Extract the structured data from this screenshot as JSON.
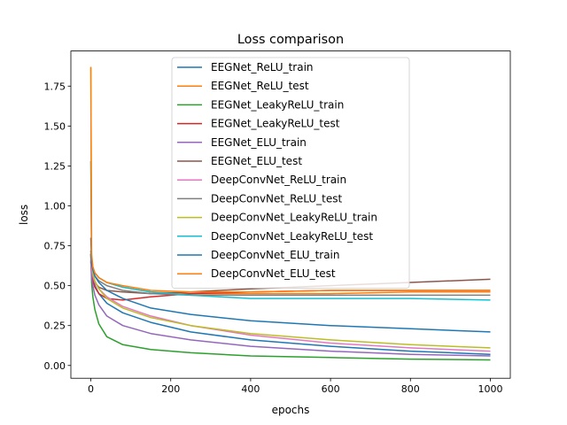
{
  "chart_data": {
    "type": "line",
    "title": "Loss comparison",
    "xlabel": "epochs",
    "ylabel": "loss",
    "xlim": [
      -50,
      1050
    ],
    "ylim": [
      -0.08,
      1.97
    ],
    "xticks": [
      0,
      200,
      400,
      600,
      800,
      1000
    ],
    "xtick_labels": [
      "0",
      "200",
      "400",
      "600",
      "800",
      "1000"
    ],
    "yticks": [
      0.0,
      0.25,
      0.5,
      0.75,
      1.0,
      1.25,
      1.5,
      1.75
    ],
    "ytick_labels": [
      "0.00",
      "0.25",
      "0.50",
      "0.75",
      "1.00",
      "1.25",
      "1.50",
      "1.75"
    ],
    "grid": false,
    "legend_position": "upper center",
    "series": [
      {
        "name": "EEGNet_ReLU_train",
        "color": "#1f77b4",
        "x": [
          0,
          2,
          5,
          10,
          20,
          40,
          80,
          150,
          250,
          400,
          600,
          800,
          1000
        ],
        "values": [
          1.28,
          0.62,
          0.55,
          0.5,
          0.45,
          0.39,
          0.33,
          0.27,
          0.21,
          0.16,
          0.12,
          0.09,
          0.07
        ]
      },
      {
        "name": "EEGNet_ReLU_test",
        "color": "#ff7f0e",
        "x": [
          0,
          2,
          5,
          10,
          20,
          40,
          80,
          150,
          250,
          400,
          600,
          800,
          1000
        ],
        "values": [
          0.7,
          0.64,
          0.6,
          0.58,
          0.55,
          0.52,
          0.49,
          0.46,
          0.45,
          0.45,
          0.45,
          0.46,
          0.46
        ]
      },
      {
        "name": "EEGNet_LeakyReLU_train",
        "color": "#2ca02c",
        "x": [
          0,
          2,
          5,
          10,
          20,
          40,
          80,
          150,
          250,
          400,
          600,
          800,
          1000
        ],
        "values": [
          0.7,
          0.52,
          0.43,
          0.35,
          0.26,
          0.18,
          0.13,
          0.1,
          0.08,
          0.06,
          0.05,
          0.04,
          0.035
        ]
      },
      {
        "name": "EEGNet_LeakyReLU_test",
        "color": "#d62728",
        "x": [
          0,
          2,
          5,
          10,
          20,
          40,
          80,
          150,
          250,
          400,
          600,
          800,
          1000
        ],
        "values": [
          0.65,
          0.58,
          0.53,
          0.49,
          0.45,
          0.42,
          0.41,
          0.43,
          0.45,
          0.46,
          0.47,
          0.47,
          0.47
        ]
      },
      {
        "name": "EEGNet_ELU_train",
        "color": "#9467bd",
        "x": [
          0,
          2,
          5,
          10,
          20,
          40,
          80,
          150,
          250,
          400,
          600,
          800,
          1000
        ],
        "values": [
          0.7,
          0.55,
          0.5,
          0.44,
          0.38,
          0.31,
          0.25,
          0.2,
          0.16,
          0.12,
          0.09,
          0.07,
          0.06
        ]
      },
      {
        "name": "EEGNet_ELU_test",
        "color": "#8c564b",
        "x": [
          0,
          2,
          5,
          10,
          20,
          40,
          80,
          150,
          250,
          400,
          600,
          800,
          1000
        ],
        "values": [
          0.66,
          0.6,
          0.56,
          0.52,
          0.49,
          0.47,
          0.46,
          0.45,
          0.46,
          0.48,
          0.5,
          0.52,
          0.54
        ]
      },
      {
        "name": "DeepConvNet_ReLU_train",
        "color": "#e377c2",
        "x": [
          0,
          2,
          5,
          10,
          20,
          40,
          80,
          150,
          250,
          400,
          600,
          800,
          1000
        ],
        "values": [
          0.72,
          0.6,
          0.56,
          0.52,
          0.48,
          0.43,
          0.37,
          0.31,
          0.25,
          0.19,
          0.14,
          0.11,
          0.09
        ]
      },
      {
        "name": "DeepConvNet_ReLU_test",
        "color": "#7f7f7f",
        "x": [
          0,
          2,
          5,
          10,
          20,
          40,
          80,
          150,
          250,
          400,
          600,
          800,
          1000
        ],
        "values": [
          0.7,
          0.64,
          0.6,
          0.56,
          0.53,
          0.5,
          0.47,
          0.45,
          0.44,
          0.44,
          0.44,
          0.44,
          0.44
        ]
      },
      {
        "name": "DeepConvNet_LeakyReLU_train",
        "color": "#bcbd22",
        "x": [
          0,
          2,
          5,
          10,
          20,
          40,
          80,
          150,
          250,
          400,
          600,
          800,
          1000
        ],
        "values": [
          1.87,
          0.68,
          0.58,
          0.53,
          0.48,
          0.42,
          0.36,
          0.3,
          0.25,
          0.2,
          0.16,
          0.13,
          0.11
        ]
      },
      {
        "name": "DeepConvNet_LeakyReLU_test",
        "color": "#17becf",
        "x": [
          0,
          2,
          5,
          10,
          20,
          40,
          80,
          150,
          250,
          400,
          600,
          800,
          1000
        ],
        "values": [
          0.72,
          0.66,
          0.61,
          0.58,
          0.55,
          0.52,
          0.49,
          0.46,
          0.44,
          0.42,
          0.42,
          0.42,
          0.41
        ]
      },
      {
        "name": "DeepConvNet_ELU_train",
        "color": "#1f77b4",
        "x": [
          0,
          2,
          5,
          10,
          20,
          40,
          80,
          150,
          250,
          400,
          600,
          800,
          1000
        ],
        "values": [
          0.8,
          0.64,
          0.6,
          0.56,
          0.52,
          0.47,
          0.42,
          0.36,
          0.32,
          0.28,
          0.25,
          0.23,
          0.21
        ]
      },
      {
        "name": "DeepConvNet_ELU_test",
        "color": "#ff7f0e",
        "x": [
          0,
          2,
          5,
          10,
          20,
          40,
          80,
          150,
          250,
          400,
          600,
          800,
          1000
        ],
        "values": [
          1.87,
          0.7,
          0.62,
          0.58,
          0.55,
          0.52,
          0.5,
          0.47,
          0.46,
          0.46,
          0.47,
          0.47,
          0.47
        ]
      }
    ]
  }
}
